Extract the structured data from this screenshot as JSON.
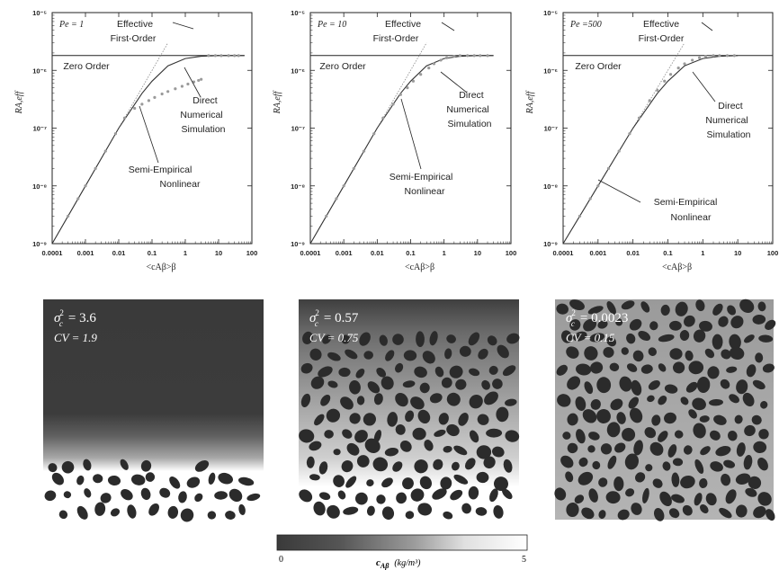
{
  "chart_data": [
    {
      "type": "line",
      "xscale": "log",
      "yscale": "log",
      "xlim": [
        0.0001,
        100
      ],
      "ylim": [
        1e-09,
        1e-05
      ],
      "xticks": [
        "0.0001",
        "0.001",
        "0.01",
        "0.1",
        "1",
        "10",
        "100"
      ],
      "yticks": [
        "10⁻⁹",
        "10⁻⁸",
        "10⁻⁷",
        "10⁻⁶",
        "10⁻⁵"
      ],
      "xlabel": "<cAβ>β",
      "ylabel": "RA,eff",
      "annotation_pe": "Pe = 1",
      "labels": {
        "effective_l1": "Effective",
        "effective_l2": "First-Order",
        "zero": "Zero Order",
        "direct_l1": "Direct",
        "direct_l2": "Numerical",
        "direct_l3": "Simulation",
        "semi_l1": "Semi-Empirical",
        "semi_l2": "Nonlinear"
      },
      "series": [
        {
          "key": "zero",
          "x": [
            0.0001,
            60
          ],
          "y": [
            1.8e-06,
            1.8e-06
          ]
        },
        {
          "key": "first_order",
          "x": [
            0.0001,
            0.3
          ],
          "y": [
            1e-09,
            3e-06
          ]
        },
        {
          "key": "semi_empirical",
          "x": [
            0.0001,
            0.001,
            0.01,
            0.05,
            0.1,
            0.3,
            1,
            3,
            10,
            60
          ],
          "y": [
            1e-09,
            1e-08,
            1e-07,
            4e-07,
            6.5e-07,
            1.2e-06,
            1.6e-06,
            1.75e-06,
            1.8e-06,
            1.8e-06
          ]
        },
        {
          "key": "dns",
          "x": [
            0.0003,
            0.0006,
            0.001,
            0.002,
            0.004,
            0.008,
            0.015,
            0.03,
            0.05,
            0.08,
            0.12,
            0.2,
            0.3,
            0.5,
            0.8,
            1.2,
            1.8,
            2.5,
            3,
            5,
            8,
            12,
            20,
            30,
            40
          ],
          "y": [
            3e-09,
            6e-09,
            1e-08,
            2e-08,
            4e-08,
            8e-08,
            1.5e-07,
            2.2e-07,
            2.6e-07,
            3e-07,
            3.4e-07,
            3.9e-07,
            4.3e-07,
            4.8e-07,
            5.3e-07,
            5.8e-07,
            6.3e-07,
            6.7e-07,
            7e-07,
            1.8e-06,
            1.8e-06,
            1.8e-06,
            1.8e-06,
            1.8e-06,
            1.8e-06
          ]
        }
      ]
    },
    {
      "type": "line",
      "xscale": "log",
      "yscale": "log",
      "xlim": [
        0.0001,
        100
      ],
      "ylim": [
        1e-09,
        1e-05
      ],
      "xticks": [
        "0.0001",
        "0.001",
        "0.01",
        "0.1",
        "1",
        "10",
        "100"
      ],
      "yticks": [
        "10⁻⁹",
        "10⁻⁸",
        "10⁻⁷",
        "10⁻⁶",
        "10⁻⁵"
      ],
      "xlabel": "<cAβ>β",
      "ylabel": "RA,eff",
      "annotation_pe": "Pe = 10",
      "labels": {
        "effective_l1": "Effective",
        "effective_l2": "First-Order",
        "zero": "Zero Order",
        "direct_l1": "Direct",
        "direct_l2": "Numerical",
        "direct_l3": "Simulation",
        "semi_l1": "Semi-Empirical",
        "semi_l2": "Nonlinear"
      },
      "series": [
        {
          "key": "zero",
          "x": [
            0.0001,
            30
          ],
          "y": [
            1.8e-06,
            1.8e-06
          ]
        },
        {
          "key": "first_order",
          "x": [
            0.0001,
            0.3
          ],
          "y": [
            1e-09,
            3e-06
          ]
        },
        {
          "key": "semi_empirical",
          "x": [
            0.0001,
            0.001,
            0.01,
            0.05,
            0.1,
            0.3,
            1,
            3,
            10,
            30
          ],
          "y": [
            1e-09,
            1e-08,
            1e-07,
            4e-07,
            6.5e-07,
            1.2e-06,
            1.6e-06,
            1.75e-06,
            1.8e-06,
            1.8e-06
          ]
        },
        {
          "key": "dns",
          "x": [
            0.0003,
            0.0006,
            0.001,
            0.002,
            0.004,
            0.008,
            0.015,
            0.03,
            0.05,
            0.08,
            0.12,
            0.2,
            0.35,
            0.5,
            0.8,
            1.2,
            2,
            3,
            5,
            8,
            12,
            20
          ],
          "y": [
            3e-09,
            6e-09,
            1e-08,
            2e-08,
            4e-08,
            8e-08,
            1.5e-07,
            2.6e-07,
            3.8e-07,
            5e-07,
            6.5e-07,
            8.5e-07,
            1.1e-06,
            1.3e-06,
            1.5e-06,
            1.65e-06,
            1.75e-06,
            1.8e-06,
            1.8e-06,
            1.8e-06,
            1.8e-06,
            1.8e-06
          ]
        }
      ]
    },
    {
      "type": "line",
      "xscale": "log",
      "yscale": "log",
      "xlim": [
        0.0001,
        100
      ],
      "ylim": [
        1e-09,
        1e-05
      ],
      "xticks": [
        "0.0001",
        "0.001",
        "0.01",
        "0.1",
        "1",
        "10",
        "100"
      ],
      "yticks": [
        "10⁻⁹",
        "10⁻⁸",
        "10⁻⁷",
        "10⁻⁶",
        "10⁻⁵"
      ],
      "xlabel": "<cAβ>β",
      "ylabel": "RA,eff",
      "annotation_pe": "Pe =500",
      "labels": {
        "effective_l1": "Effective",
        "effective_l2": "First-Order",
        "zero": "Zero Order",
        "direct_l1": "Direct",
        "direct_l2": "Numerical",
        "direct_l3": "Simulation",
        "semi_l1": "Semi-Empirical",
        "semi_l2": "Nonlinear"
      },
      "series": [
        {
          "key": "zero",
          "x": [
            0.0001,
            100
          ],
          "y": [
            1.8e-06,
            1.8e-06
          ]
        },
        {
          "key": "first_order",
          "x": [
            0.0001,
            0.3
          ],
          "y": [
            1e-09,
            3e-06
          ]
        },
        {
          "key": "semi_empirical",
          "x": [
            0.0001,
            0.001,
            0.01,
            0.05,
            0.1,
            0.3,
            1,
            3,
            10
          ],
          "y": [
            1e-09,
            1e-08,
            1e-07,
            4e-07,
            6.5e-07,
            1.2e-06,
            1.6e-06,
            1.75e-06,
            1.8e-06
          ]
        },
        {
          "key": "dns",
          "x": [
            0.0003,
            0.0006,
            0.001,
            0.002,
            0.004,
            0.008,
            0.015,
            0.03,
            0.05,
            0.08,
            0.12,
            0.2,
            0.3,
            0.5,
            0.8,
            1.2,
            2,
            3,
            5,
            8
          ],
          "y": [
            3e-09,
            6e-09,
            1e-08,
            2e-08,
            4e-08,
            8e-08,
            1.5e-07,
            3e-07,
            4.5e-07,
            6.5e-07,
            8.5e-07,
            1.1e-06,
            1.3e-06,
            1.5e-06,
            1.65e-06,
            1.75e-06,
            1.8e-06,
            1.8e-06,
            1.8e-06,
            1.8e-06
          ]
        }
      ]
    }
  ],
  "fields": [
    {
      "sigma_label": "σ",
      "sigma_sub": "c",
      "sigma_sup": "2",
      "sigma_value": "=  3.6",
      "cv": "CV = 1.9",
      "front": 0.73,
      "variant": "front"
    },
    {
      "sigma_label": "σ",
      "sigma_sub": "c",
      "sigma_sup": "2",
      "sigma_value": "=  0.57",
      "cv": "CV = 0.75",
      "front": 0.35,
      "variant": "partial"
    },
    {
      "sigma_label": "σ",
      "sigma_sub": "c",
      "sigma_sup": "2",
      "sigma_value": "=  0.0023",
      "cv": "CV = 0.15",
      "front": 0.0,
      "variant": "uniform"
    }
  ],
  "colorbar": {
    "min": "0",
    "max": "5",
    "label_main": "c",
    "label_sub": "Aβ",
    "label_units": "(kg/m³)"
  },
  "colors": {
    "dark": "#3a3a3a",
    "mid": "#9a9a9a",
    "light": "#ffffff",
    "grain": "#2b2b2b",
    "line": "#222222",
    "faint": "#8a8a8a"
  }
}
